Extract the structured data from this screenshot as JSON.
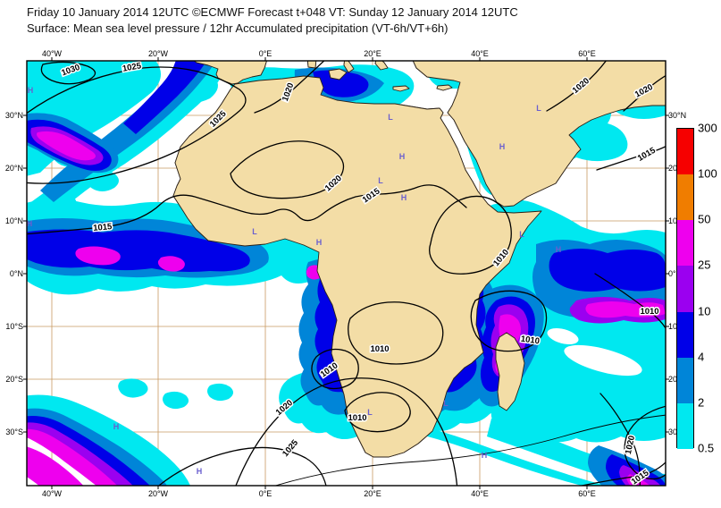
{
  "header": {
    "line1": "Friday 10 January 2014 12UTC ©ECMWF Forecast t+048 VT: Sunday 12 January 2014 12UTC",
    "line2": "Surface: Mean sea level pressure / 12hr Accumulated precipitation (VT-6h/VT+6h)"
  },
  "axes": {
    "lon": [
      "40°W",
      "20°W",
      "0°E",
      "20°E",
      "40°E",
      "60°E"
    ],
    "lat_left": [
      "30°N",
      "20°N",
      "10°N",
      "0°N",
      "10°S",
      "20°S",
      "30°S"
    ],
    "lat_right": [
      "30°N",
      "20",
      "10",
      "0°",
      "10",
      "20",
      "30"
    ]
  },
  "legend": {
    "values": [
      "300",
      "100",
      "50",
      "25",
      "10",
      "4",
      "2",
      "0.5"
    ],
    "colors": [
      "#f60000",
      "#f07d00",
      "#ee00ee",
      "#9b00f0",
      "#0000e8",
      "#0085d8",
      "#00e8f0"
    ]
  },
  "palette": {
    "land": "#f3dda6",
    "sea": "#ffffff",
    "grid": "#c89a62",
    "coast": "#2b2118",
    "cyan": "#00e8f0",
    "blue2": "#0085d8",
    "blue": "#0000e8",
    "violet": "#9b00f0",
    "magenta": "#ee00ee",
    "orange": "#f07d00",
    "red": "#f60000",
    "hl": "#6a5fcf"
  },
  "contour_labels": [
    "1030",
    "1025",
    "1025",
    "1020",
    "1020",
    "1020",
    "1015",
    "1020",
    "1015",
    "1015",
    "1010",
    "1010",
    "1010",
    "1010",
    "1010",
    "1020",
    "1010",
    "1025",
    "1020",
    "1015"
  ],
  "markers": {
    "high": "H",
    "low": "L"
  },
  "chart_data": {
    "type": "map",
    "title": "ECMWF MSLP / 12hr accumulated precipitation forecast",
    "region": "Africa / Atlantic / Indian Ocean (45W–75E, 40N–40S)",
    "precip_scale_mm": [
      0.5,
      2,
      4,
      10,
      25,
      50,
      100,
      300
    ],
    "isobar_values_hPa": [
      1010,
      1015,
      1020,
      1025,
      1030
    ],
    "grid_spacing_deg": {
      "lon": 20,
      "lat": 10
    }
  }
}
